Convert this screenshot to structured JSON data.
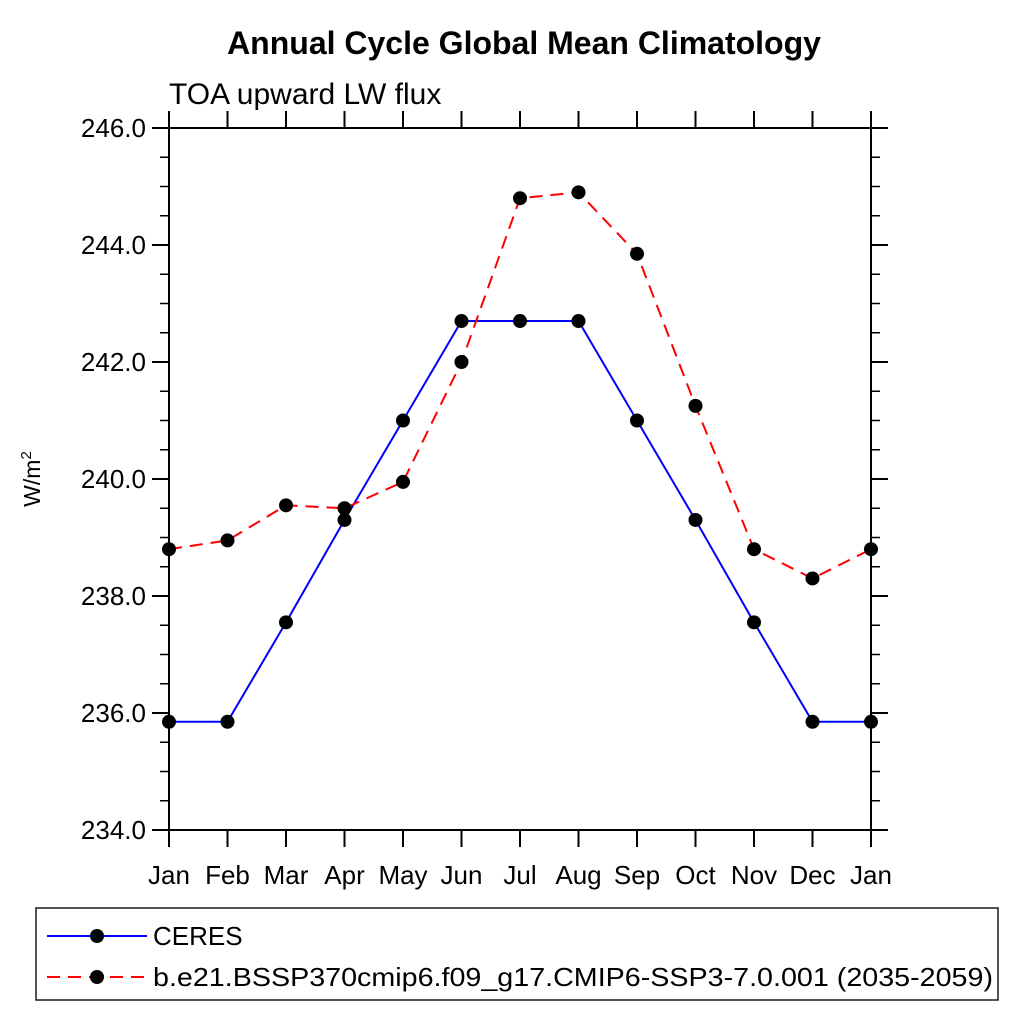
{
  "chart": {
    "title": "Annual Cycle Global Mean Climatology",
    "subtitle": "TOA upward LW flux",
    "ylabel_base": "W/m",
    "ylabel_exp": "2"
  },
  "chart_data": {
    "type": "line",
    "title": "Annual Cycle Global Mean Climatology",
    "subtitle": "TOA upward LW flux",
    "xlabel": "",
    "ylabel": "W/m2",
    "x_categories": [
      "Jan",
      "Feb",
      "Mar",
      "Apr",
      "May",
      "Jun",
      "Jul",
      "Aug",
      "Sep",
      "Oct",
      "Nov",
      "Dec",
      "Jan"
    ],
    "series": [
      {
        "name": "CERES",
        "color": "#0000ff",
        "line_style": "solid",
        "marker": "circle",
        "marker_color": "#000000",
        "values": [
          235.85,
          235.85,
          237.55,
          239.3,
          241.0,
          242.7,
          242.7,
          242.7,
          241.0,
          239.3,
          237.55,
          235.85,
          235.85
        ]
      },
      {
        "name": "b.e21.BSSP370cmip6.f09_g17.CMIP6-SSP3-7.0.001 (2035-2059)",
        "color": "#ff0000",
        "line_style": "dashed",
        "marker": "circle",
        "marker_color": "#000000",
        "values": [
          238.8,
          238.95,
          239.55,
          239.5,
          239.95,
          242.0,
          244.8,
          244.9,
          243.85,
          241.25,
          238.8,
          238.3,
          238.8
        ]
      }
    ],
    "ylim": [
      234.0,
      246.0
    ],
    "ytick_step": 2.0,
    "ytick_minor_step": 0.5,
    "ytick_decimals": 1,
    "grid": false,
    "legend_position": "bottom-left"
  }
}
